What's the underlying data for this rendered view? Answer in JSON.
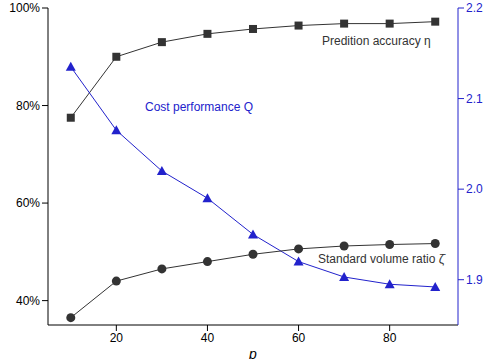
{
  "chart_data": {
    "type": "line",
    "x_label": "p",
    "x": [
      10,
      20,
      30,
      40,
      50,
      60,
      70,
      80,
      90
    ],
    "xlim": [
      5,
      95
    ],
    "xticks": [
      20,
      40,
      60,
      80
    ],
    "ylim": [
      35,
      100
    ],
    "yticks": [
      {
        "value": 40,
        "label": "40%"
      },
      {
        "value": 60,
        "label": "60%"
      },
      {
        "value": 80,
        "label": "80%"
      },
      {
        "value": 100,
        "label": "100%"
      }
    ],
    "y2lim": [
      1.85,
      2.2
    ],
    "y2ticks": [
      1.9,
      {
        "value": 2,
        "label": "2.0"
      },
      2.1,
      2.2
    ],
    "series": [
      {
        "name": "Predition accuracy η",
        "color": "#333333",
        "marker": "square",
        "values": [
          77.5,
          90,
          93,
          94.7,
          95.7,
          96.4,
          96.8,
          96.8,
          97.2
        ]
      },
      {
        "name": "Cost performance Q",
        "color": "#2222cc",
        "marker": "triangle",
        "axis": "y2",
        "values": [
          2.135,
          2.065,
          2.02,
          1.99,
          1.95,
          1.92,
          1.903,
          1.895,
          1.892
        ]
      },
      {
        "name": "Standard volume ratio ζ̄",
        "color": "#333333",
        "marker": "circle",
        "values": [
          36.5,
          44,
          46.5,
          48,
          49.5,
          50.6,
          51.2,
          51.5,
          51.7
        ]
      }
    ]
  }
}
